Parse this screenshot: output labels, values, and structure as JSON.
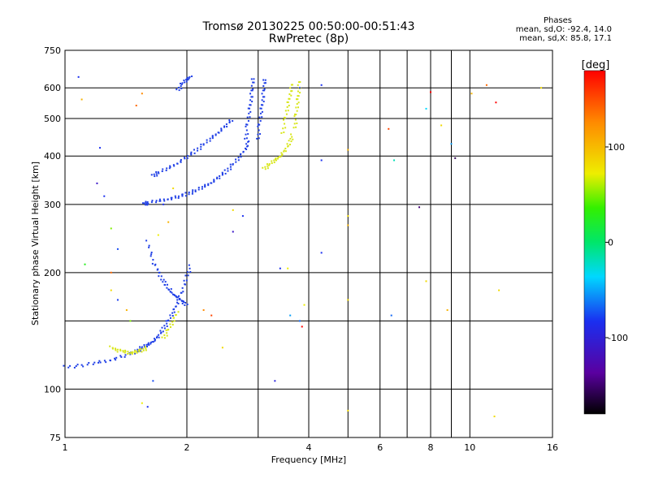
{
  "header": {
    "title_line1": "Tromsø 20130225 00:50:00-00:51:43",
    "title_line2": "RwPretec (8p)"
  },
  "stats": {
    "heading": "Phases",
    "line_o": "mean, sd,O: -92.4, 14.0",
    "line_x": "mean, sd,X: 85.8, 17.1"
  },
  "chart_data": {
    "type": "scatter",
    "xlabel": "Frequency [MHz]",
    "ylabel": "Stationary phase Virtual Height [km]",
    "x_scale": "log",
    "y_scale": "log",
    "xlim": [
      1,
      16
    ],
    "ylim": [
      75,
      750
    ],
    "x_ticks": [
      {
        "value": 1,
        "label": "1"
      },
      {
        "value": 2,
        "label": "2"
      },
      {
        "value": 4,
        "label": "4"
      },
      {
        "value": 6,
        "label": "6"
      },
      {
        "value": 8,
        "label": "8"
      },
      {
        "value": 10,
        "label": "10"
      },
      {
        "value": 16,
        "label": "16"
      }
    ],
    "x_minor_grid": [
      3,
      5,
      7,
      9
    ],
    "y_ticks": [
      {
        "value": 75,
        "label": "75"
      },
      {
        "value": 100,
        "label": "100"
      },
      {
        "value": 200,
        "label": "200"
      },
      {
        "value": 300,
        "label": "300"
      },
      {
        "value": 400,
        "label": "400"
      },
      {
        "value": 500,
        "label": "500"
      },
      {
        "value": 600,
        "label": "600"
      },
      {
        "value": 750,
        "label": "750"
      }
    ],
    "y_minor_grid": [
      150
    ],
    "grid": true,
    "colorbar": {
      "label": "[deg]",
      "range": [
        -180,
        180
      ],
      "ticks": [
        {
          "value": 100,
          "label": "100"
        },
        {
          "value": 0,
          "label": "0"
        },
        {
          "value": -100,
          "label": "-100"
        }
      ]
    },
    "series": [
      {
        "mode": "O",
        "phase_deg": -92,
        "color": "#1f3fe6",
        "traces": [
          [
            [
              1.0,
              114
            ],
            [
              1.1,
              115
            ],
            [
              1.2,
              117
            ],
            [
              1.3,
              119
            ],
            [
              1.4,
              122
            ],
            [
              1.5,
              125
            ],
            [
              1.55,
              128
            ],
            [
              1.6,
              130
            ],
            [
              1.65,
              133
            ],
            [
              1.7,
              137
            ],
            [
              1.75,
              143
            ],
            [
              1.8,
              150
            ],
            [
              1.85,
              158
            ],
            [
              1.9,
              168
            ],
            [
              1.95,
              180
            ],
            [
              2.0,
              195
            ],
            [
              2.05,
              210
            ]
          ],
          [
            [
              1.57,
              300
            ],
            [
              1.6,
              303
            ],
            [
              1.7,
              306
            ],
            [
              1.8,
              310
            ],
            [
              1.9,
              314
            ],
            [
              2.0,
              319
            ],
            [
              2.1,
              325
            ],
            [
              2.2,
              333
            ],
            [
              2.3,
              342
            ],
            [
              2.4,
              353
            ],
            [
              2.5,
              365
            ],
            [
              2.6,
              380
            ],
            [
              2.7,
              398
            ],
            [
              2.8,
              420
            ],
            [
              2.85,
              440
            ]
          ],
          [
            [
              1.65,
              355
            ],
            [
              1.7,
              362
            ],
            [
              1.8,
              372
            ],
            [
              1.9,
              384
            ],
            [
              2.0,
              398
            ],
            [
              2.1,
              412
            ],
            [
              2.2,
              428
            ],
            [
              2.3,
              445
            ],
            [
              2.4,
              462
            ],
            [
              2.5,
              480
            ],
            [
              2.6,
              500
            ]
          ],
          [
            [
              1.6,
              240
            ],
            [
              1.65,
              215
            ],
            [
              1.7,
              200
            ],
            [
              1.75,
              190
            ],
            [
              1.8,
              182
            ],
            [
              1.85,
              176
            ],
            [
              1.9,
              172
            ],
            [
              1.95,
              168
            ],
            [
              2.0,
              165
            ]
          ],
          [
            [
              1.9,
              590
            ],
            [
              1.95,
              615
            ],
            [
              2.0,
              630
            ],
            [
              2.05,
              645
            ]
          ],
          [
            [
              2.8,
              440
            ],
            [
              2.82,
              480
            ],
            [
              2.85,
              520
            ],
            [
              2.88,
              560
            ],
            [
              2.9,
              600
            ],
            [
              2.92,
              645
            ]
          ],
          [
            [
              3.0,
              440
            ],
            [
              3.02,
              480
            ],
            [
              3.05,
              520
            ],
            [
              3.08,
              560
            ],
            [
              3.1,
              600
            ],
            [
              3.12,
              640
            ]
          ]
        ]
      },
      {
        "mode": "X",
        "phase_deg": 86,
        "color": "#d8e61a",
        "traces": [
          [
            [
              1.3,
              128
            ],
            [
              1.35,
              126
            ],
            [
              1.4,
              125
            ],
            [
              1.45,
              124
            ],
            [
              1.5,
              125
            ],
            [
              1.55,
              126
            ],
            [
              1.6,
              128
            ]
          ],
          [
            [
              1.75,
              135
            ],
            [
              1.8,
              142
            ],
            [
              1.85,
              150
            ],
            [
              1.9,
              160
            ]
          ],
          [
            [
              3.1,
              370
            ],
            [
              3.2,
              380
            ],
            [
              3.3,
              390
            ],
            [
              3.4,
              400
            ],
            [
              3.5,
              415
            ],
            [
              3.6,
              435
            ],
            [
              3.65,
              455
            ]
          ],
          [
            [
              3.45,
              455
            ],
            [
              3.5,
              500
            ],
            [
              3.55,
              540
            ],
            [
              3.6,
              580
            ],
            [
              3.65,
              620
            ]
          ],
          [
            [
              3.7,
              470
            ],
            [
              3.72,
              510
            ],
            [
              3.75,
              550
            ],
            [
              3.78,
              590
            ],
            [
              3.8,
              630
            ]
          ]
        ]
      }
    ],
    "scatter_points": [
      [
        1.08,
        640,
        -100
      ],
      [
        1.1,
        560,
        120
      ],
      [
        1.22,
        420,
        -100
      ],
      [
        1.2,
        340,
        -120
      ],
      [
        1.25,
        315,
        -100
      ],
      [
        1.3,
        260,
        60
      ],
      [
        1.35,
        230,
        -90
      ],
      [
        1.12,
        210,
        30
      ],
      [
        1.3,
        200,
        150
      ],
      [
        1.3,
        180,
        100
      ],
      [
        1.35,
        170,
        -95
      ],
      [
        1.42,
        160,
        120
      ],
      [
        1.45,
        150,
        60
      ],
      [
        1.5,
        540,
        150
      ],
      [
        1.55,
        92,
        90
      ],
      [
        1.6,
        90,
        -100
      ],
      [
        1.65,
        105,
        -90
      ],
      [
        1.7,
        250,
        90
      ],
      [
        1.75,
        300,
        -100
      ],
      [
        1.8,
        270,
        120
      ],
      [
        1.85,
        330,
        100
      ],
      [
        2.2,
        160,
        140
      ],
      [
        2.3,
        155,
        160
      ],
      [
        2.45,
        128,
        100
      ],
      [
        2.6,
        290,
        100
      ],
      [
        2.75,
        280,
        -100
      ],
      [
        2.6,
        255,
        -120
      ],
      [
        3.3,
        105,
        -110
      ],
      [
        3.4,
        205,
        -100
      ],
      [
        3.55,
        205,
        90
      ],
      [
        3.6,
        155,
        -60
      ],
      [
        3.8,
        150,
        -80
      ],
      [
        3.85,
        145,
        180
      ],
      [
        3.9,
        165,
        90
      ],
      [
        4.3,
        610,
        -100
      ],
      [
        4.3,
        390,
        -100
      ],
      [
        4.3,
        225,
        -100
      ],
      [
        5.0,
        415,
        120
      ],
      [
        5.0,
        280,
        100
      ],
      [
        5.0,
        265,
        120
      ],
      [
        5.0,
        170,
        100
      ],
      [
        5.0,
        88,
        100
      ],
      [
        6.3,
        470,
        160
      ],
      [
        6.4,
        155,
        -80
      ],
      [
        6.5,
        390,
        -20
      ],
      [
        7.5,
        295,
        -150
      ],
      [
        7.8,
        530,
        -40
      ],
      [
        7.8,
        190,
        100
      ],
      [
        8.0,
        585,
        180
      ],
      [
        8.5,
        480,
        100
      ],
      [
        8.8,
        160,
        120
      ],
      [
        9.0,
        430,
        -60
      ],
      [
        9.2,
        395,
        -160
      ],
      [
        11.0,
        610,
        150
      ],
      [
        11.6,
        550,
        180
      ],
      [
        11.8,
        180,
        100
      ],
      [
        11.5,
        85,
        100
      ],
      [
        15.0,
        600,
        100
      ],
      [
        10.1,
        580,
        120
      ],
      [
        3.8,
        600,
        -100
      ],
      [
        1.55,
        580,
        140
      ]
    ]
  }
}
